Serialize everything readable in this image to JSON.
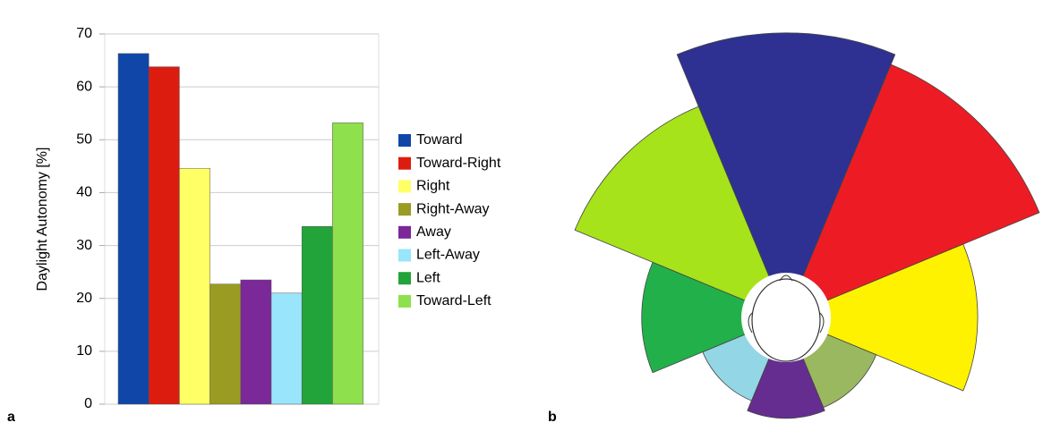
{
  "chart_data": [
    {
      "type": "bar",
      "panel": "a",
      "ylabel": "Daylight Autonomy [%]",
      "categories": [
        "Toward",
        "Toward-Right",
        "Right",
        "Right-Away",
        "Away",
        "Left-Away",
        "Left",
        "Toward-Left"
      ],
      "values": [
        66.3,
        63.8,
        44.6,
        22.7,
        23.5,
        21.0,
        33.6,
        53.2
      ],
      "colors": [
        "#1046a8",
        "#dd1c10",
        "#ffff66",
        "#9a9b22",
        "#7b2898",
        "#99e5fb",
        "#22a43a",
        "#8ee04c"
      ],
      "ylim": [
        0,
        70
      ],
      "yticks": [
        0,
        10,
        20,
        30,
        40,
        50,
        60,
        70
      ],
      "grid": true,
      "legend": "right"
    },
    {
      "type": "rose",
      "panel": "b",
      "values": [
        66.3,
        63.8,
        44.6,
        22.7,
        23.5,
        21.0,
        33.6,
        53.2
      ],
      "colors": [
        "#2e3192",
        "#ed1c24",
        "#fff200",
        "#9ab860",
        "#662d91",
        "#93d6e6",
        "#22b04a",
        "#a6e31b"
      ]
    }
  ]
}
